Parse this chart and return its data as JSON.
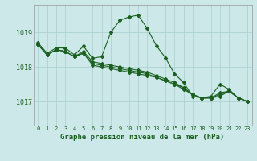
{
  "xlabel": "Graphe pression niveau de la mer (hPa)",
  "x_ticks": [
    0,
    1,
    2,
    3,
    4,
    5,
    6,
    7,
    8,
    9,
    10,
    11,
    12,
    13,
    14,
    15,
    16,
    17,
    18,
    19,
    20,
    21,
    22,
    23
  ],
  "ylim": [
    1016.3,
    1019.8
  ],
  "yticks": [
    1017,
    1018,
    1019
  ],
  "background_color": "#cce8e8",
  "grid_color": "#aacece",
  "line_color": "#1a6020",
  "series": [
    [
      1018.65,
      1018.35,
      1018.5,
      1018.45,
      1018.3,
      1018.4,
      1018.05,
      1018.0,
      1017.95,
      1017.9,
      1017.85,
      1017.8,
      1017.75,
      1017.7,
      1017.6,
      1017.5,
      1017.4,
      1017.2,
      1017.1,
      1017.1,
      1017.15,
      1017.3,
      1017.1,
      1017.0
    ],
    [
      1018.65,
      1018.35,
      1018.5,
      1018.45,
      1018.3,
      1018.4,
      1018.1,
      1018.05,
      1018.0,
      1017.95,
      1017.9,
      1017.85,
      1017.8,
      1017.7,
      1017.6,
      1017.5,
      1017.35,
      1017.2,
      1017.1,
      1017.1,
      1017.2,
      1017.3,
      1017.1,
      1017.0
    ],
    [
      1018.65,
      1018.35,
      1018.5,
      1018.45,
      1018.3,
      1018.45,
      1018.15,
      1018.1,
      1018.05,
      1018.0,
      1017.95,
      1017.9,
      1017.85,
      1017.75,
      1017.65,
      1017.55,
      1017.4,
      1017.2,
      1017.1,
      1017.1,
      1017.25,
      1017.3,
      1017.1,
      1017.0
    ],
    [
      1018.7,
      1018.4,
      1018.55,
      1018.55,
      1018.35,
      1018.6,
      1018.25,
      1018.3,
      1019.0,
      1019.35,
      1019.45,
      1019.5,
      1019.12,
      1018.62,
      1018.27,
      1017.8,
      1017.55,
      1017.15,
      1017.1,
      1017.15,
      1017.5,
      1017.35,
      1017.1,
      1017.0
    ]
  ]
}
